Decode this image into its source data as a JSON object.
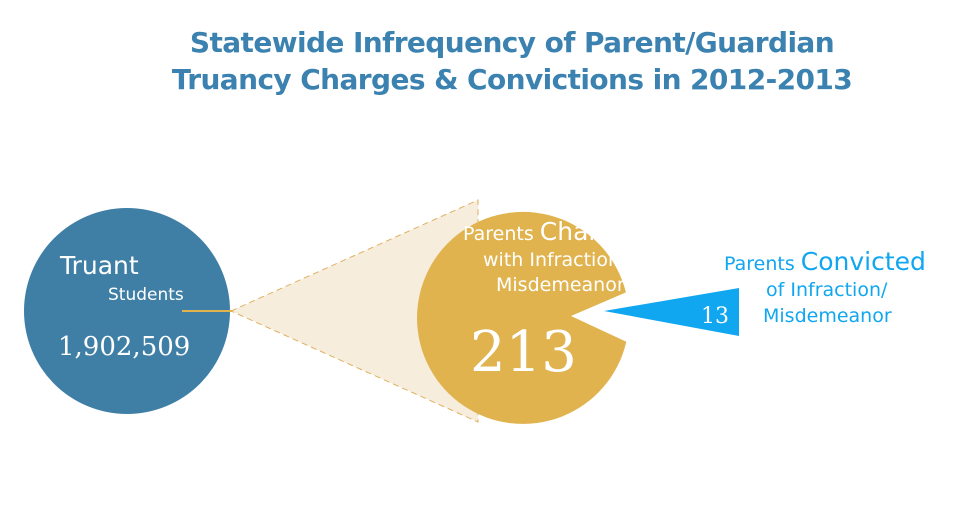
{
  "colors": {
    "title": "#3b82b0",
    "truant_circle": "#3f7fa6",
    "charged_circle": "#e0b34e",
    "convicted_wedge": "#10a6f0",
    "convicted_text": "#10a6f0",
    "connector_fill": "#f7eddd",
    "connector_stroke": "#dfb060",
    "white": "#ffffff"
  },
  "title": {
    "line1": "Statewide Infrequency of Parent/Guardian",
    "line2": "Truancy Charges & Convictions in 2012-2013"
  },
  "chart_data": {
    "type": "other",
    "title": "Statewide Infrequency of Parent/Guardian Truancy Charges & Convictions in 2012-2013",
    "items": [
      {
        "label_lines": [
          "Truant",
          "Students"
        ],
        "value": 1902509,
        "value_text": "1,902,509"
      },
      {
        "label_parts": {
          "prefix": "Parents ",
          "emphasis": "Charged"
        },
        "label_lines": [
          "with Infraction/",
          "Misdemeanor"
        ],
        "value": 213,
        "value_text": "213"
      },
      {
        "label_parts": {
          "prefix": "Parents ",
          "emphasis": "Convicted"
        },
        "label_lines": [
          "of Infraction/",
          "Misdemeanor"
        ],
        "value": 13,
        "value_text": "13"
      }
    ]
  }
}
